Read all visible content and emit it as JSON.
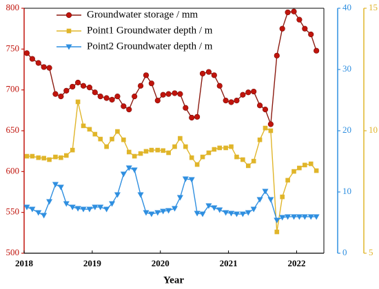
{
  "chart_data": {
    "type": "line",
    "xlabel": "Year",
    "x": [
      2018.04,
      2018.12,
      2018.21,
      2018.29,
      2018.37,
      2018.46,
      2018.54,
      2018.62,
      2018.71,
      2018.79,
      2018.87,
      2018.96,
      2019.04,
      2019.12,
      2019.21,
      2019.29,
      2019.37,
      2019.46,
      2019.54,
      2019.62,
      2019.71,
      2019.79,
      2019.87,
      2019.96,
      2020.04,
      2020.12,
      2020.21,
      2020.29,
      2020.37,
      2020.46,
      2020.54,
      2020.62,
      2020.71,
      2020.79,
      2020.87,
      2020.96,
      2021.04,
      2021.12,
      2021.21,
      2021.29,
      2021.37,
      2021.46,
      2021.54,
      2021.62,
      2021.71,
      2021.79,
      2021.87,
      2021.96,
      2022.04,
      2022.12,
      2022.21,
      2022.29
    ],
    "xlim": [
      2018,
      2022.4
    ],
    "xticks": [
      2018,
      2019,
      2020,
      2021,
      2022
    ],
    "ylim": [
      500,
      800
    ],
    "yticks": [
      500,
      550,
      600,
      650,
      700,
      750,
      800
    ],
    "y2lim": [
      0,
      40
    ],
    "y2ticks": [
      0,
      10,
      20,
      30,
      40
    ],
    "y3lim": [
      5,
      15
    ],
    "y3ticks": [
      5,
      10,
      15
    ],
    "legend": "upper left",
    "series": [
      {
        "name": "Groundwater storage / mm",
        "color": "#c0140c",
        "axis": "y",
        "marker": "circle",
        "values": [
          745,
          738,
          733,
          728,
          727,
          695,
          692,
          699,
          704,
          709,
          705,
          703,
          697,
          692,
          690,
          688,
          692,
          680,
          676,
          692,
          705,
          718,
          708,
          687,
          694,
          695,
          696,
          695,
          678,
          666,
          667,
          720,
          722,
          718,
          705,
          687,
          685,
          687,
          694,
          697,
          698,
          681,
          676,
          658,
          742,
          775,
          795,
          796,
          786,
          775,
          768,
          748
        ]
      },
      {
        "name": "Point1 Groundwater depth / m",
        "color": "#e0b52a",
        "axis": "y3",
        "marker": "square",
        "values": [
          8.96,
          8.96,
          8.9,
          8.88,
          8.82,
          8.93,
          8.9,
          8.99,
          9.21,
          11.18,
          10.2,
          10.06,
          9.86,
          9.66,
          9.35,
          9.66,
          9.97,
          9.63,
          9.13,
          8.96,
          9.07,
          9.16,
          9.21,
          9.21,
          9.19,
          9.1,
          9.35,
          9.69,
          9.35,
          8.9,
          8.62,
          8.93,
          9.1,
          9.24,
          9.3,
          9.3,
          9.35,
          8.93,
          8.82,
          8.57,
          8.76,
          9.63,
          10.11,
          10.0,
          5.87,
          7.3,
          7.98,
          8.34,
          8.48,
          8.6,
          8.65,
          8.37
        ]
      },
      {
        "name": "Point2 Groundwater depth / m",
        "color": "#2f8fe0",
        "axis": "y2",
        "marker": "triangle",
        "values": [
          7.53,
          7.19,
          6.63,
          6.18,
          8.43,
          11.24,
          10.79,
          8.09,
          7.53,
          7.3,
          7.19,
          7.19,
          7.53,
          7.53,
          7.19,
          8.09,
          9.55,
          12.92,
          13.93,
          13.6,
          9.55,
          6.63,
          6.4,
          6.63,
          6.85,
          6.97,
          7.3,
          9.1,
          12.13,
          12.02,
          6.52,
          6.4,
          7.75,
          7.42,
          7.08,
          6.63,
          6.52,
          6.4,
          6.4,
          6.63,
          7.19,
          8.76,
          10.11,
          8.76,
          5.39,
          5.84,
          5.96,
          5.96,
          5.96,
          5.96,
          5.96,
          5.96
        ]
      }
    ]
  }
}
